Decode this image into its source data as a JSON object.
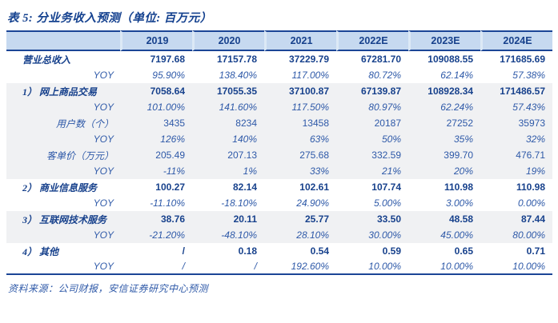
{
  "title": "表 5: 分业务收入预测（单位: 百万元）",
  "source": "资料来源：公司财报，安信证券研究中心预测",
  "colors": {
    "accent_navy": "#1B4596",
    "header_background": "#C6D9F0",
    "band_gray": "#F0F1F3",
    "text_navy_bold": "#17418C",
    "text_blue": "#2E59A8"
  },
  "table": {
    "columns": [
      "2019",
      "2020",
      "2021",
      "2022E",
      "2023E",
      "2024E"
    ],
    "rows": [
      {
        "label": "营业总收入",
        "type": "section",
        "band": "white",
        "values": [
          "7197.68",
          "17157.78",
          "37229.79",
          "67281.70",
          "109088.55",
          "171685.69"
        ]
      },
      {
        "label": "YOY",
        "type": "yoy",
        "band": "white",
        "values": [
          "95.90%",
          "138.40%",
          "117.00%",
          "80.72%",
          "62.14%",
          "57.38%"
        ]
      },
      {
        "label": "1） 网上商品交易",
        "type": "section",
        "band": "gray",
        "values": [
          "7058.64",
          "17055.35",
          "37100.87",
          "67139.87",
          "108928.34",
          "171486.57"
        ]
      },
      {
        "label": "YOY",
        "type": "yoy",
        "band": "gray",
        "values": [
          "101.00%",
          "141.60%",
          "117.50%",
          "80.97%",
          "62.24%",
          "57.43%"
        ]
      },
      {
        "label": "用户数（个）",
        "type": "sub",
        "band": "gray",
        "values": [
          "3435",
          "8234",
          "13458",
          "20187",
          "27252",
          "35973"
        ]
      },
      {
        "label": "YOY",
        "type": "yoy",
        "band": "gray",
        "values": [
          "126%",
          "140%",
          "63%",
          "50%",
          "35%",
          "32%"
        ]
      },
      {
        "label": "客单价（万元）",
        "type": "sub",
        "band": "gray",
        "values": [
          "205.49",
          "207.13",
          "275.68",
          "332.59",
          "399.70",
          "476.71"
        ]
      },
      {
        "label": "YOY",
        "type": "yoy",
        "band": "gray",
        "values": [
          "-11%",
          "1%",
          "33%",
          "21%",
          "20%",
          "19%"
        ]
      },
      {
        "label": "2） 商业信息服务",
        "type": "section",
        "band": "white",
        "values": [
          "100.27",
          "82.14",
          "102.61",
          "107.74",
          "110.98",
          "110.98"
        ]
      },
      {
        "label": "YOY",
        "type": "yoy",
        "band": "white",
        "values": [
          "-11.10%",
          "-18.10%",
          "24.90%",
          "5.00%",
          "3.00%",
          "0.00%"
        ]
      },
      {
        "label": "3） 互联网技术服务",
        "type": "section",
        "band": "gray",
        "values": [
          "38.76",
          "20.11",
          "25.77",
          "33.50",
          "48.58",
          "87.44"
        ]
      },
      {
        "label": "YOY",
        "type": "yoy",
        "band": "gray",
        "values": [
          "-21.20%",
          "-48.10%",
          "28.10%",
          "30.00%",
          "45.00%",
          "80.00%"
        ]
      },
      {
        "label": "4） 其他",
        "type": "section",
        "band": "white",
        "values": [
          "/",
          "0.18",
          "0.54",
          "0.59",
          "0.65",
          "0.71"
        ]
      },
      {
        "label": "YOY",
        "type": "yoy",
        "band": "white",
        "values": [
          "/",
          "/",
          "192.60%",
          "10.00%",
          "10.00%",
          "10.00%"
        ]
      }
    ]
  }
}
